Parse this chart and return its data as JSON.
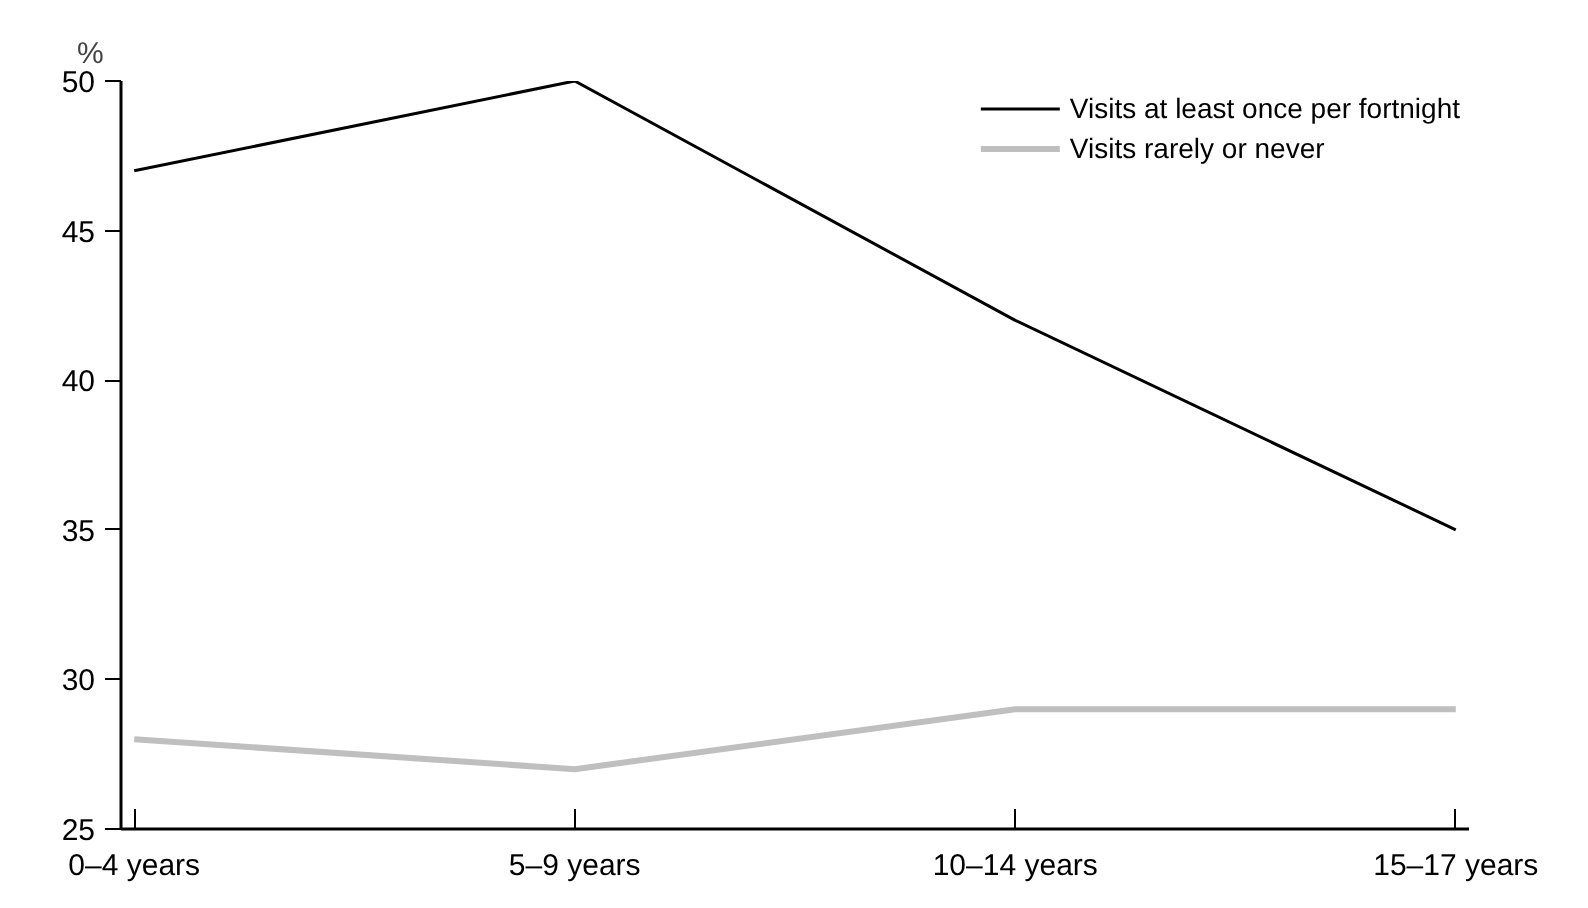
{
  "chart_data": {
    "type": "line",
    "ylabel": "%",
    "categories": [
      "0–4 years",
      "5–9 years",
      "10–14 years",
      "15–17 years"
    ],
    "series": [
      {
        "name": "Visits at least once per fortnight",
        "color": "#000000",
        "values": [
          47,
          50,
          42,
          35
        ]
      },
      {
        "name": "Visits rarely or never",
        "color": "#bfbfbf",
        "values": [
          28,
          27,
          29,
          29
        ]
      }
    ],
    "ylim": [
      25,
      50
    ],
    "yticks": [
      25,
      30,
      35,
      40,
      45,
      50
    ],
    "grid": false,
    "legend": "top right",
    "marker": "none",
    "line_style": "solid"
  }
}
